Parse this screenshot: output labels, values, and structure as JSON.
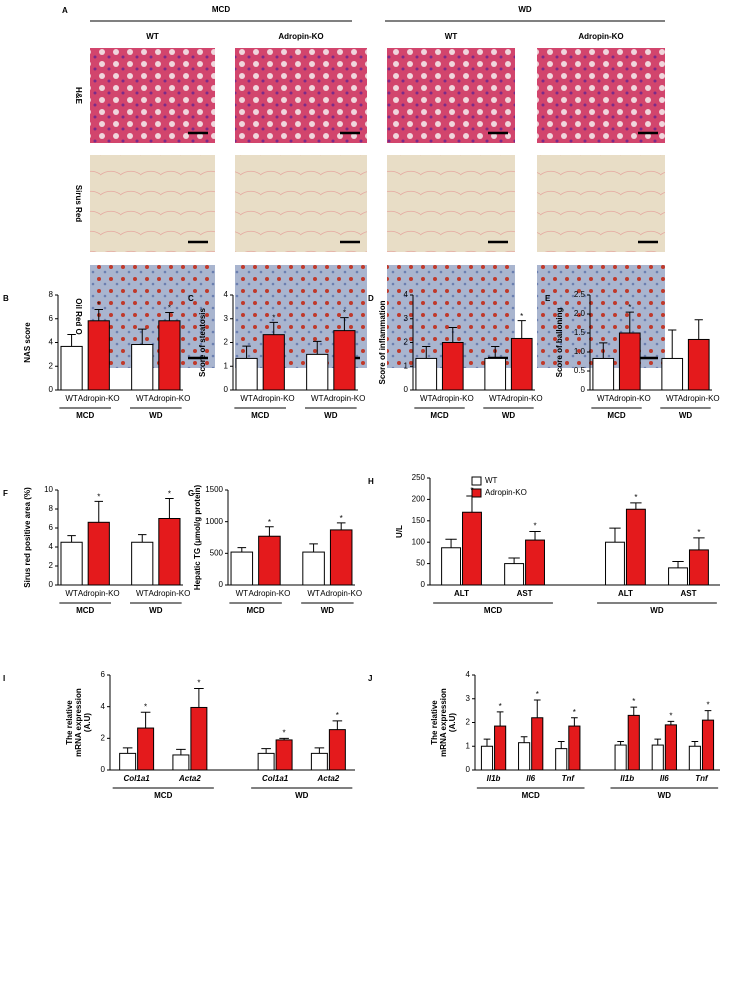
{
  "panel_a": {
    "panel": "A",
    "groups": [
      "MCD",
      "WD"
    ],
    "columns": [
      "WT",
      "Adropin-KO",
      "WT",
      "Adropin-KO"
    ],
    "rows": [
      "H&E",
      "Sirus Red",
      "Oil Red O"
    ]
  },
  "chart_data": [
    {
      "type": "bar",
      "panel": "B",
      "ylabel": "NAS score",
      "categories": [
        "WT",
        "Adropin-KO",
        "WT",
        "Adropin-KO"
      ],
      "group_labels": [
        "MCD",
        "WD"
      ],
      "values": [
        3.67,
        5.83,
        3.83,
        5.83
      ],
      "errors": [
        1.0,
        0.95,
        1.3,
        0.7
      ],
      "annotations": [
        null,
        "*",
        null,
        "*"
      ],
      "colors": [
        "#ffffff",
        "#e41a1c",
        "#ffffff",
        "#e41a1c"
      ],
      "ylim": [
        0,
        8
      ],
      "yticks": [
        0,
        2,
        4,
        6,
        8
      ]
    },
    {
      "type": "bar",
      "panel": "C",
      "ylabel": "Score of steatosis",
      "categories": [
        "WT",
        "Adropin-KO",
        "WT",
        "Adropin-KO"
      ],
      "group_labels": [
        "MCD",
        "WD"
      ],
      "values": [
        1.33,
        2.33,
        1.5,
        2.5
      ],
      "errors": [
        0.52,
        0.52,
        0.55,
        0.55
      ],
      "annotations": [
        null,
        "*",
        null,
        "*"
      ],
      "colors": [
        "#ffffff",
        "#e41a1c",
        "#ffffff",
        "#e41a1c"
      ],
      "ylim": [
        0,
        4
      ],
      "yticks": [
        0,
        1,
        2,
        3,
        4
      ]
    },
    {
      "type": "bar",
      "panel": "D",
      "ylabel": "Score of inflammation",
      "categories": [
        "WT",
        "Adropin-KO",
        "WT",
        "Adropin-KO"
      ],
      "group_labels": [
        "MCD",
        "WD"
      ],
      "values": [
        1.33,
        2.0,
        1.33,
        2.17
      ],
      "errors": [
        0.5,
        0.63,
        0.5,
        0.75
      ],
      "annotations": [
        null,
        null,
        null,
        "*"
      ],
      "colors": [
        "#ffffff",
        "#e41a1c",
        "#ffffff",
        "#e41a1c"
      ],
      "ylim": [
        0,
        4
      ],
      "yticks": [
        0,
        1,
        2,
        3,
        4
      ]
    },
    {
      "type": "bar",
      "panel": "E",
      "ylabel": "Score of balloning",
      "categories": [
        "WT",
        "Adropin-KO",
        "WT",
        "Adropin-KO"
      ],
      "group_labels": [
        "MCD",
        "WD"
      ],
      "values": [
        0.83,
        1.5,
        0.83,
        1.33
      ],
      "errors": [
        0.41,
        0.55,
        0.75,
        0.52
      ],
      "annotations": [
        null,
        "*",
        null,
        null
      ],
      "colors": [
        "#ffffff",
        "#e41a1c",
        "#ffffff",
        "#e41a1c"
      ],
      "ylim": [
        0,
        2.5
      ],
      "yticks": [
        0,
        0.5,
        {
          "value": 1,
          "label": "1.0"
        },
        1.5,
        {
          "value": 2,
          "label": "2.0"
        },
        2.5
      ]
    },
    {
      "type": "bar",
      "panel": "F",
      "ylabel": "Sirus red positive area (%)",
      "categories": [
        "WT",
        "Adropin-KO",
        "WT",
        "Adropin-KO"
      ],
      "group_labels": [
        "MCD",
        "WD"
      ],
      "values": [
        4.5,
        6.6,
        4.5,
        7.0
      ],
      "errors": [
        0.7,
        2.2,
        0.8,
        2.1
      ],
      "annotations": [
        null,
        "*",
        null,
        "*"
      ],
      "colors": [
        "#ffffff",
        "#e41a1c",
        "#ffffff",
        "#e41a1c"
      ],
      "ylim": [
        0,
        10
      ],
      "yticks": [
        0,
        2,
        4,
        6,
        8,
        10
      ]
    },
    {
      "type": "bar",
      "panel": "G",
      "ylabel": "Hepatic TG (μmol/g protein)",
      "categories": [
        "WT",
        "Adropin-KO",
        "WT",
        "Adropin-KO"
      ],
      "group_labels": [
        "MCD",
        "WD"
      ],
      "values": [
        520,
        770,
        520,
        870
      ],
      "errors": [
        70,
        150,
        130,
        110
      ],
      "annotations": [
        null,
        "*",
        null,
        "*"
      ],
      "colors": [
        "#ffffff",
        "#e41a1c",
        "#ffffff",
        "#e41a1c"
      ],
      "ylim": [
        0,
        1500
      ],
      "yticks": [
        0,
        500,
        1000,
        1500
      ]
    },
    {
      "type": "grouped_bar",
      "panel": "H",
      "ylabel": "U/L",
      "categories": [
        "ALT",
        "AST",
        "ALT",
        "AST"
      ],
      "group_labels": [
        "MCD",
        "WD"
      ],
      "italic_categories": false,
      "legend": "top-left",
      "ylim": [
        0,
        250
      ],
      "yticks": [
        0,
        50,
        100,
        150,
        200,
        250
      ],
      "series": [
        {
          "name": "WT",
          "color": "#ffffff",
          "values": [
            87,
            50,
            100,
            40
          ],
          "errors": [
            20,
            13,
            33,
            15
          ],
          "annotations": [
            null,
            null,
            null,
            null
          ]
        },
        {
          "name": "Adropin-KO",
          "color": "#e41a1c",
          "values": [
            170,
            105,
            177,
            82
          ],
          "errors": [
            38,
            20,
            15,
            28
          ],
          "annotations": [
            "*",
            "*",
            "*",
            "*"
          ]
        }
      ]
    },
    {
      "type": "grouped_bar",
      "panel": "I",
      "ylabel": [
        "The relative",
        "mRNA expression",
        "(A.U)"
      ],
      "categories": [
        "Col1a1",
        "Acta2",
        "Col1a1",
        "Acta2"
      ],
      "group_labels": [
        "MCD",
        "WD"
      ],
      "italic_categories": true,
      "ylim": [
        0,
        6
      ],
      "yticks": [
        0,
        2,
        4,
        6
      ],
      "series": [
        {
          "color": "#ffffff",
          "values": [
            1.05,
            0.95,
            1.05,
            1.05
          ],
          "errors": [
            0.35,
            0.35,
            0.3,
            0.35
          ],
          "annotations": [
            null,
            null,
            null,
            null
          ]
        },
        {
          "color": "#e41a1c",
          "values": [
            2.65,
            3.95,
            1.9,
            2.55
          ],
          "errors": [
            1.0,
            1.2,
            0.1,
            0.55
          ],
          "annotations": [
            "*",
            "*",
            "*",
            "*"
          ]
        }
      ]
    },
    {
      "type": "grouped_bar",
      "panel": "J",
      "ylabel": [
        "The relative",
        "mRNA expression",
        "(A.U)"
      ],
      "categories": [
        "Il1b",
        "Il6",
        "Tnf",
        "Il1b",
        "Il6",
        "Tnf"
      ],
      "group_labels": [
        "MCD",
        "WD"
      ],
      "italic_categories": true,
      "ylim": [
        0,
        4
      ],
      "yticks": [
        0,
        1,
        2,
        3,
        4
      ],
      "series": [
        {
          "color": "#ffffff",
          "values": [
            1.0,
            1.15,
            0.9,
            1.05,
            1.05,
            1.0
          ],
          "errors": [
            0.3,
            0.25,
            0.3,
            0.15,
            0.25,
            0.2
          ],
          "annotations": [
            null,
            null,
            null,
            null,
            null,
            null
          ]
        },
        {
          "color": "#e41a1c",
          "values": [
            1.85,
            2.2,
            1.85,
            2.3,
            1.9,
            2.1
          ],
          "errors": [
            0.6,
            0.75,
            0.35,
            0.35,
            0.15,
            0.4
          ],
          "annotations": [
            "*",
            "*",
            "*",
            "*",
            "*",
            "*"
          ]
        }
      ]
    }
  ]
}
